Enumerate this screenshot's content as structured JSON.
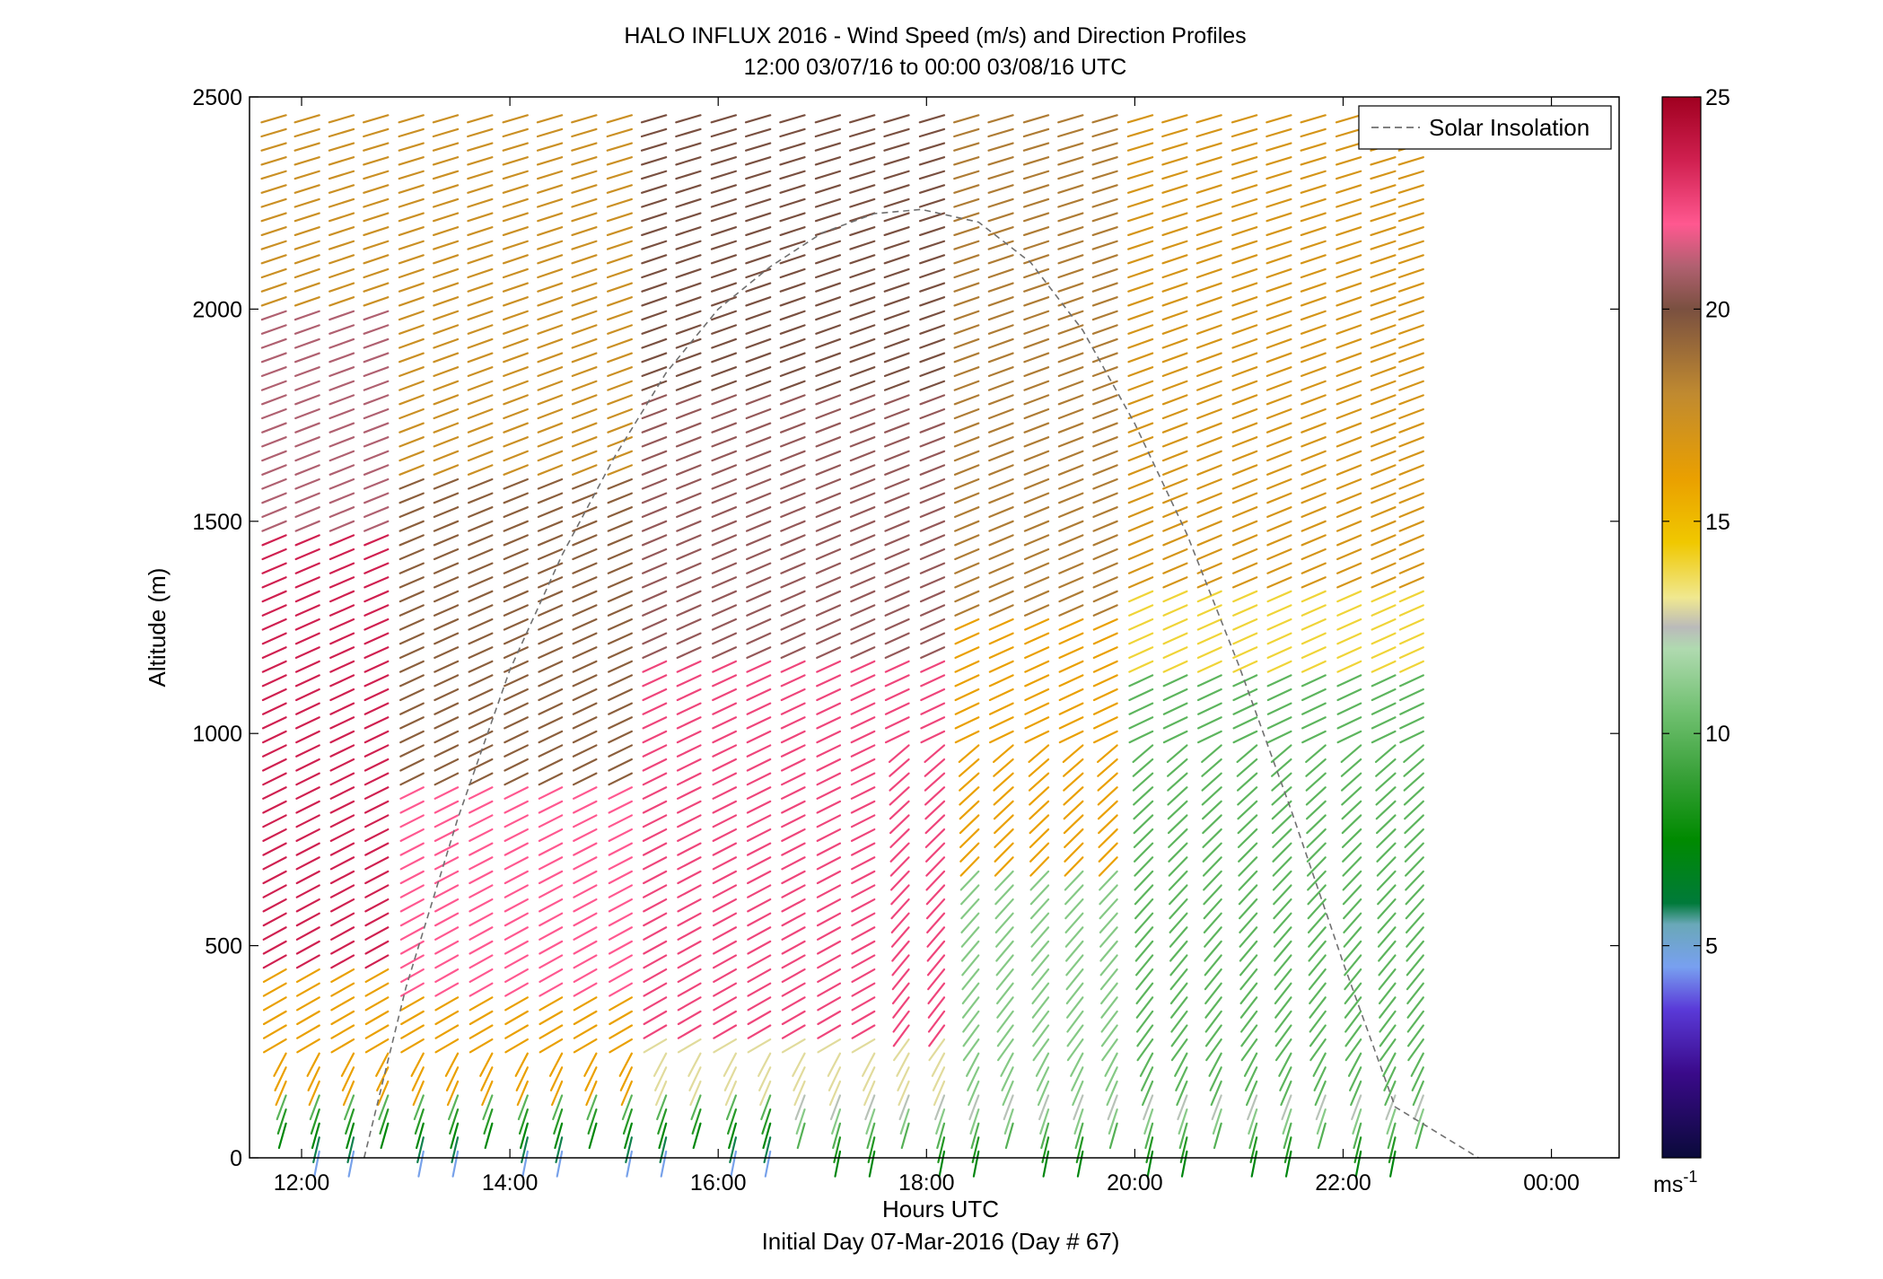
{
  "chart_data": {
    "type": "wind-barb-profile",
    "title": "HALO INFLUX 2016 - Wind Speed (m/s) and Direction Profiles",
    "subtitle": "12:00 03/07/16 to 00:00 03/08/16  UTC",
    "xlabel": "Hours UTC",
    "xlabel2": "Initial Day 07-Mar-2016 (Day # 67)",
    "ylabel": "Altitude (m)",
    "x_range_hours": [
      11.5,
      24.65
    ],
    "ylim": [
      0,
      2500
    ],
    "x_ticks": [
      {
        "hour": 12,
        "label": "12:00"
      },
      {
        "hour": 14,
        "label": "14:00"
      },
      {
        "hour": 16,
        "label": "16:00"
      },
      {
        "hour": 18,
        "label": "18:00"
      },
      {
        "hour": 20,
        "label": "20:00"
      },
      {
        "hour": 22,
        "label": "22:00"
      },
      {
        "hour": 24,
        "label": "00:00"
      }
    ],
    "y_ticks": [
      0,
      500,
      1000,
      1500,
      2000,
      2500
    ],
    "profile_times_hours": [
      11.85,
      12.17,
      12.5,
      12.83,
      13.17,
      13.5,
      13.83,
      14.17,
      14.5,
      14.83,
      15.17,
      15.5,
      15.83,
      16.17,
      16.5,
      16.83,
      17.17,
      17.5,
      17.83,
      18.17,
      18.5,
      18.83,
      19.17,
      19.5,
      19.83,
      20.17,
      20.5,
      20.83,
      21.17,
      21.5,
      21.83,
      22.17,
      22.5,
      22.77
    ],
    "profile_altitude_step_m": 33,
    "legend": {
      "position": "top-right",
      "entries": [
        {
          "name": "Solar Insolation",
          "style": "dashed",
          "color": "#808080"
        }
      ]
    },
    "solar_insolation_curve": [
      {
        "hour": 12.6,
        "alt": 0
      },
      {
        "hour": 13.0,
        "alt": 400
      },
      {
        "hour": 13.5,
        "alt": 800
      },
      {
        "hour": 14.0,
        "alt": 1150
      },
      {
        "hour": 14.5,
        "alt": 1420
      },
      {
        "hour": 15.0,
        "alt": 1650
      },
      {
        "hour": 15.5,
        "alt": 1850
      },
      {
        "hour": 16.0,
        "alt": 2000
      },
      {
        "hour": 16.5,
        "alt": 2100
      },
      {
        "hour": 17.0,
        "alt": 2180
      },
      {
        "hour": 17.5,
        "alt": 2225
      },
      {
        "hour": 17.95,
        "alt": 2235
      },
      {
        "hour": 18.5,
        "alt": 2205
      },
      {
        "hour": 19.0,
        "alt": 2110
      },
      {
        "hour": 19.5,
        "alt": 1950
      },
      {
        "hour": 20.0,
        "alt": 1730
      },
      {
        "hour": 20.5,
        "alt": 1470
      },
      {
        "hour": 21.0,
        "alt": 1160
      },
      {
        "hour": 21.5,
        "alt": 820
      },
      {
        "hour": 22.0,
        "alt": 460
      },
      {
        "hour": 22.5,
        "alt": 120
      },
      {
        "hour": 23.3,
        "alt": 0
      }
    ],
    "colorbar": {
      "range": [
        0,
        25
      ],
      "ticks": [
        5,
        10,
        15,
        20,
        25
      ],
      "unit": "ms",
      "unit_exp": "-1",
      "stops": [
        {
          "v": 0,
          "c": "#0a0a3a"
        },
        {
          "v": 2,
          "c": "#3a0a8a"
        },
        {
          "v": 3.5,
          "c": "#5a3ad8"
        },
        {
          "v": 4.5,
          "c": "#78a0f0"
        },
        {
          "v": 5.5,
          "c": "#6aa8b8"
        },
        {
          "v": 6,
          "c": "#007a3a"
        },
        {
          "v": 7.5,
          "c": "#008a00"
        },
        {
          "v": 9,
          "c": "#38a038"
        },
        {
          "v": 10.5,
          "c": "#70c070"
        },
        {
          "v": 12,
          "c": "#b0dab0"
        },
        {
          "v": 12.5,
          "c": "#bababa"
        },
        {
          "v": 13.2,
          "c": "#f0e890"
        },
        {
          "v": 14.5,
          "c": "#f0c800"
        },
        {
          "v": 16,
          "c": "#eaa000"
        },
        {
          "v": 18,
          "c": "#c08a30"
        },
        {
          "v": 20,
          "c": "#7a5040"
        },
        {
          "v": 21,
          "c": "#b06070"
        },
        {
          "v": 22,
          "c": "#ff5890"
        },
        {
          "v": 23.5,
          "c": "#d02050"
        },
        {
          "v": 25,
          "c": "#a00020"
        }
      ]
    }
  }
}
